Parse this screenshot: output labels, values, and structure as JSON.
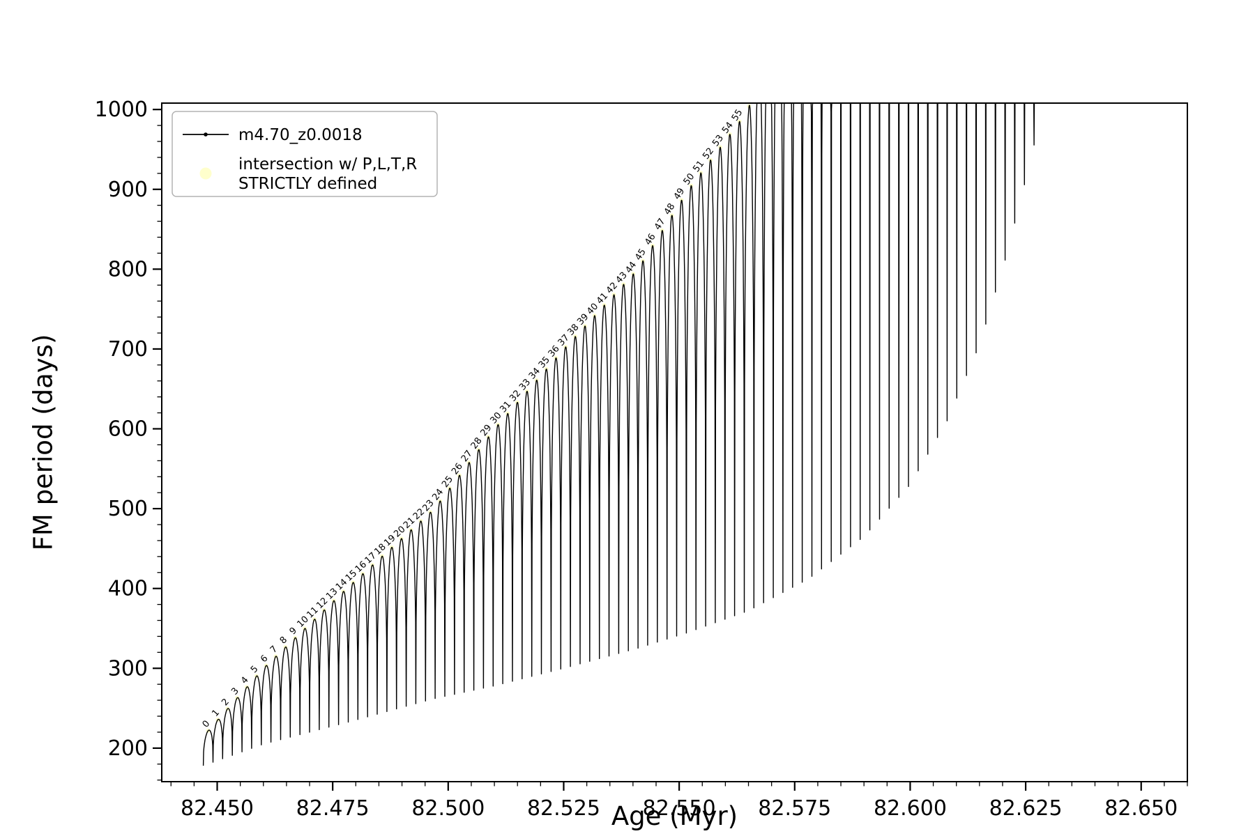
{
  "figure": {
    "background": "#ffffff"
  },
  "chart_data": {
    "type": "line",
    "title": "",
    "xlabel": "Age (Myr)",
    "ylabel": "FM period (days)",
    "xlim": [
      82.438,
      82.66
    ],
    "ylim": [
      158,
      1008
    ],
    "x_ticks": [
      "82.450",
      "82.475",
      "82.500",
      "82.525",
      "82.550",
      "82.575",
      "82.600",
      "82.625",
      "82.650"
    ],
    "x_minor_step": 0.005,
    "y_ticks": [
      "200",
      "300",
      "400",
      "500",
      "600",
      "700",
      "800",
      "900",
      "1000"
    ],
    "y_minor_step": 20,
    "grid": false,
    "legend_position": "upper-left",
    "colors": {
      "series": "#000000",
      "intersection_marker": "#ffffcc",
      "spine": "#000000",
      "legend_border": "#b3b3b3"
    },
    "legend": [
      {
        "label": "m4.70_z0.0018",
        "type": "line-with-dot",
        "color": "#000000"
      },
      {
        "label_lines": [
          "intersection w/ P,L,T,R",
          "STRICTLY defined"
        ],
        "type": "dot",
        "color": "#ffffcc"
      }
    ],
    "series": {
      "name": "m4.70_z0.0018",
      "style": "rapid pulse oscillations between a lower and an upper envelope; arc tops clipped at the top of the axes after age ~82.565",
      "n_pulses": 88,
      "x_start": 82.447,
      "x_end": 82.631,
      "arc_exponent": 0.32,
      "samples_per_pulse": 36,
      "upper_envelope": [
        [
          82.447,
          215
        ],
        [
          82.46,
          300
        ],
        [
          82.478,
          400
        ],
        [
          82.497,
          500
        ],
        [
          82.51,
          600
        ],
        [
          82.525,
          700
        ],
        [
          82.541,
          800
        ],
        [
          82.552,
          900
        ],
        [
          82.565,
          1000
        ],
        [
          82.578,
          1400
        ],
        [
          82.6,
          2600
        ],
        [
          82.631,
          4200
        ]
      ],
      "lower_envelope": [
        [
          82.447,
          178
        ],
        [
          82.46,
          205
        ],
        [
          82.478,
          232
        ],
        [
          82.497,
          262
        ],
        [
          82.51,
          278
        ],
        [
          82.525,
          300
        ],
        [
          82.541,
          325
        ],
        [
          82.552,
          345
        ],
        [
          82.565,
          372
        ],
        [
          82.578,
          412
        ],
        [
          82.59,
          465
        ],
        [
          82.6,
          530
        ],
        [
          82.608,
          610
        ],
        [
          82.615,
          705
        ],
        [
          82.621,
          820
        ],
        [
          82.626,
          935
        ],
        [
          82.631,
          1060
        ]
      ]
    },
    "pulse_labels": {
      "format": "{i}",
      "note": "sequential pulse index printed in tiny rotated text along the upper envelope",
      "font_px": 13
    }
  }
}
